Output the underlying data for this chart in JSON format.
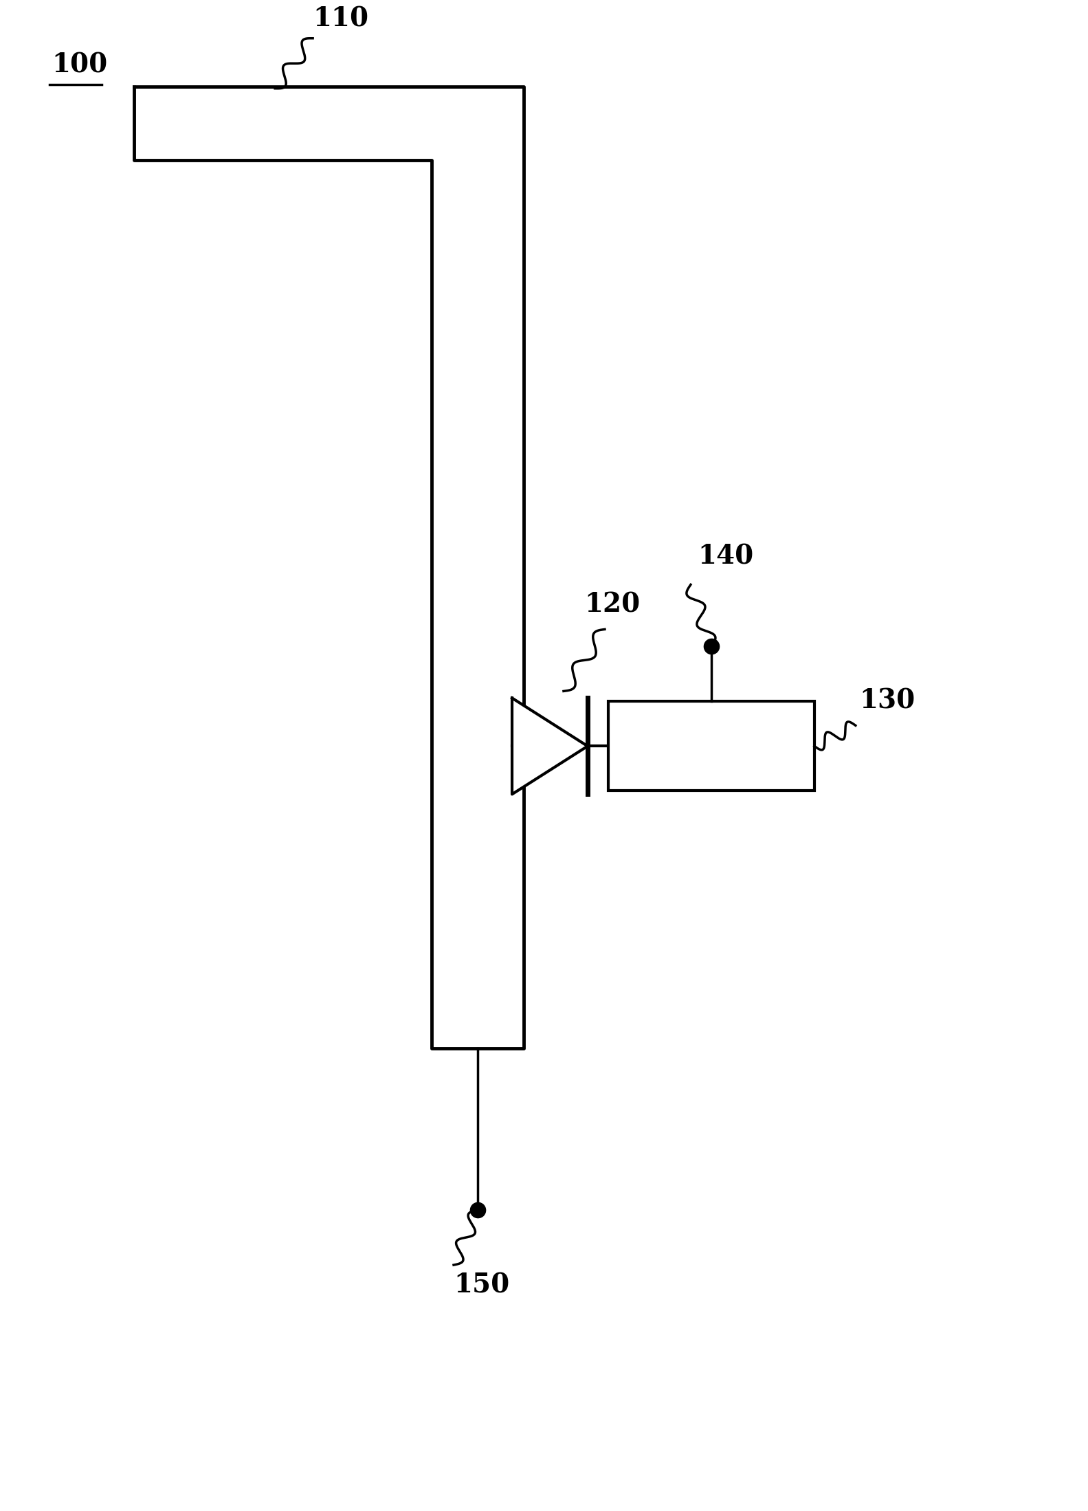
{
  "fig_width": 15.83,
  "fig_height": 21.98,
  "bg_color": "#ffffff",
  "label_100": "100",
  "label_110": "110",
  "label_120": "120",
  "label_130": "130",
  "label_140": "140",
  "label_150": "150",
  "antenna_lw": 18,
  "line_color": "#000000"
}
